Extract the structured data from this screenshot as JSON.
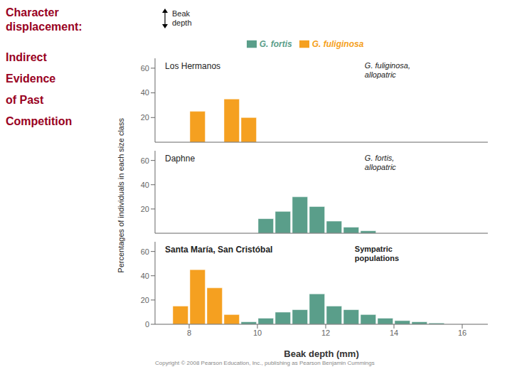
{
  "title": "Character\ndisplacement:",
  "subtitle": "Indirect\nEvidence\nof Past\nCompetition",
  "ylabel": "Percentages of individuals in each size class",
  "annotations": [
    "Beak\ndepth",
    "Copyright © 2008 Pearson Education, Inc., publishing as Pearson Benjamin Cummings"
  ],
  "chart_data": [
    {
      "type": "histogram",
      "title": "Los Hermanos",
      "annotations": [
        "G. fuliginosa,\nallopatric"
      ],
      "bins": [
        7,
        7.5,
        8,
        8.5,
        9,
        9.5,
        10,
        10.5,
        11,
        11.5,
        12,
        12.5,
        13,
        13.5,
        14,
        14.5,
        15,
        15.5,
        16,
        16.5
      ],
      "series": [
        {
          "name": "G. fuliginosa",
          "color": "#F5A020",
          "values": [
            0,
            0,
            25,
            0,
            35,
            20,
            0,
            0,
            0,
            0,
            0,
            0,
            0,
            0,
            0,
            0,
            0,
            0,
            0
          ]
        },
        {
          "name": "G. fortis",
          "color": "#5A9E8A",
          "values": [
            0,
            0,
            0,
            0,
            0,
            0,
            0,
            0,
            0,
            0,
            0,
            0,
            0,
            0,
            0,
            0,
            0,
            0,
            0
          ]
        }
      ],
      "xlim": [
        7,
        16.75
      ],
      "ylim": [
        0,
        68
      ],
      "yticks": [
        0,
        20,
        40,
        60
      ],
      "grid": false,
      "legend": "top",
      "tick_labels": "y"
    },
    {
      "type": "histogram",
      "title": "Daphne",
      "annotations": [
        "G. fortis,\nallopatric"
      ],
      "bins": [
        7,
        7.5,
        8,
        8.5,
        9,
        9.5,
        10,
        10.5,
        11,
        11.5,
        12,
        12.5,
        13,
        13.5,
        14,
        14.5,
        15,
        15.5,
        16,
        16.5
      ],
      "series": [
        {
          "name": "G. fuliginosa",
          "color": "#F5A020",
          "values": [
            0,
            0,
            0,
            0,
            0,
            0,
            0,
            0,
            0,
            0,
            0,
            0,
            0,
            0,
            0,
            0,
            0,
            0,
            0
          ]
        },
        {
          "name": "G. fortis",
          "color": "#5A9E8A",
          "values": [
            0,
            0,
            0,
            0,
            0,
            0,
            12,
            18,
            30,
            22,
            10,
            5,
            2,
            0,
            0,
            0,
            0,
            0,
            0
          ]
        }
      ],
      "xlim": [
        7,
        16.75
      ],
      "ylim": [
        0,
        68
      ],
      "yticks": [
        0,
        20,
        40,
        60
      ],
      "grid": false,
      "tick_labels": "y"
    },
    {
      "type": "histogram",
      "title": "Santa María, San Cristóbal",
      "annotations": [
        "Sympatric\npopulations"
      ],
      "xlabel": "Beak depth (mm)",
      "bins": [
        7,
        7.5,
        8,
        8.5,
        9,
        9.5,
        10,
        10.5,
        11,
        11.5,
        12,
        12.5,
        13,
        13.5,
        14,
        14.5,
        15,
        15.5,
        16,
        16.5
      ],
      "series": [
        {
          "name": "G. fuliginosa",
          "color": "#F5A020",
          "values": [
            0,
            15,
            45,
            30,
            8,
            0,
            0,
            0,
            0,
            0,
            0,
            0,
            0,
            0,
            0,
            0,
            0,
            0,
            0
          ]
        },
        {
          "name": "G. fortis",
          "color": "#5A9E8A",
          "values": [
            0,
            0,
            0,
            0,
            0,
            2,
            5,
            10,
            12,
            25,
            15,
            12,
            8,
            5,
            3,
            2,
            1,
            0,
            0
          ]
        }
      ],
      "xlim": [
        7,
        16.75
      ],
      "xticks": [
        8,
        10,
        12,
        14,
        16
      ],
      "ylim": [
        0,
        68
      ],
      "yticks": [
        0,
        20,
        40,
        60
      ],
      "grid": false
    }
  ]
}
